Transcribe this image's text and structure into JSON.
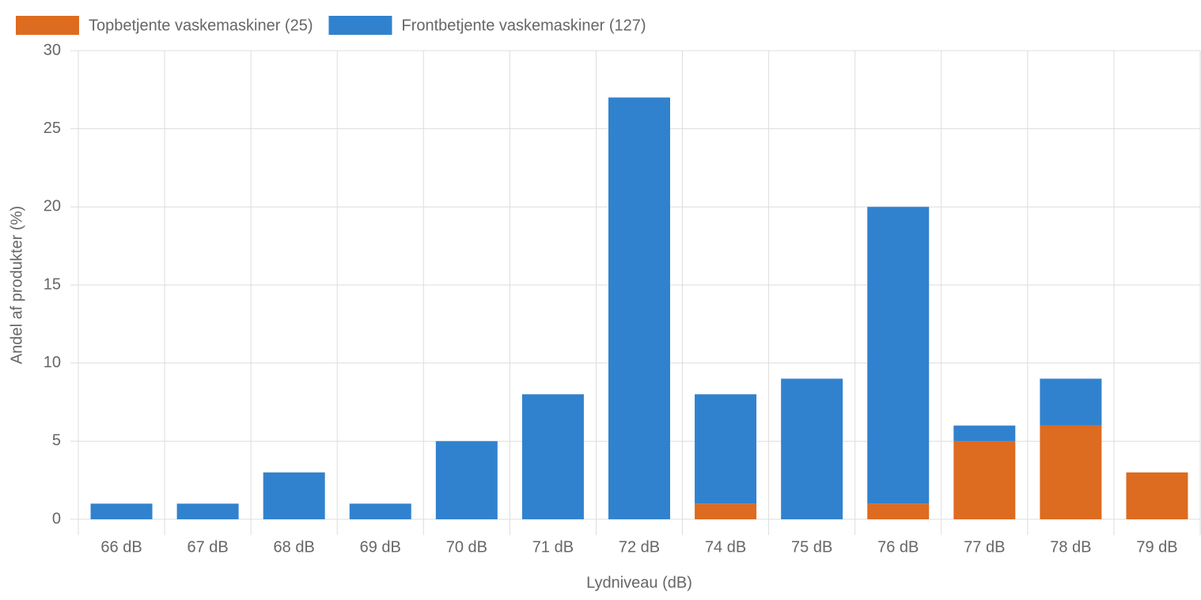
{
  "chart_data": {
    "type": "stacked_bar",
    "x_label": "Lydniveau (dB)",
    "y_label": "Andel af produkter (%)",
    "categories": [
      "66 dB",
      "67 dB",
      "68 dB",
      "69 dB",
      "70 dB",
      "71 dB",
      "72 dB",
      "74 dB",
      "75 dB",
      "76 dB",
      "77 dB",
      "78 dB",
      "79 dB"
    ],
    "series": [
      {
        "name": "Topbetjente vaskemaskiner (25)",
        "color": "#dd6b20",
        "values": [
          0,
          0,
          0,
          0,
          0,
          0,
          0,
          1,
          0,
          1,
          5,
          6,
          3
        ]
      },
      {
        "name": "Frontbetjente vaskemaskiner (127)",
        "color": "#3182ce",
        "values": [
          1,
          1,
          3,
          1,
          5,
          8,
          27,
          7,
          9,
          19,
          1,
          3,
          0
        ]
      }
    ],
    "ylim": [
      0,
      30
    ],
    "yticks": [
      0,
      5,
      10,
      15,
      20,
      25,
      30
    ],
    "grid": true,
    "legend": "top"
  }
}
